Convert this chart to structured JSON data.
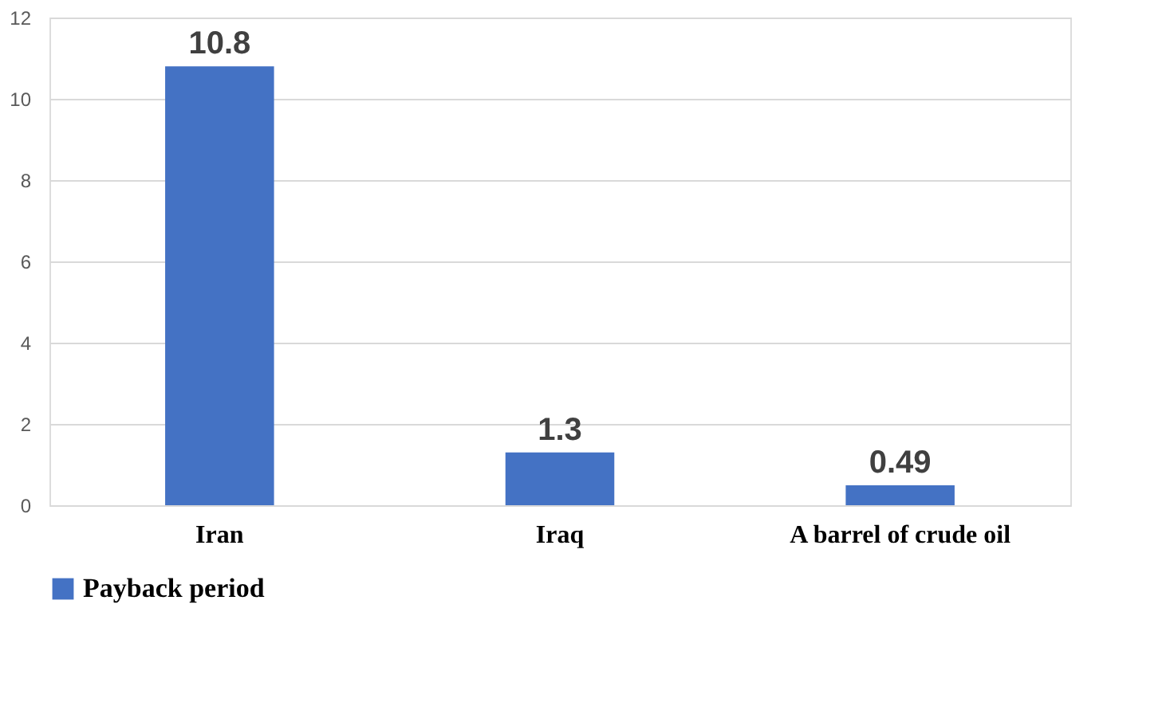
{
  "chart_data": {
    "type": "bar",
    "categories": [
      "Iran",
      "Iraq",
      "A barrel of crude oil"
    ],
    "series": [
      {
        "name": "Payback period",
        "color": "#4472c4",
        "values": [
          10.8,
          1.3,
          0.49
        ]
      }
    ],
    "ylim": [
      0,
      12
    ],
    "yticks": [
      0,
      2,
      4,
      6,
      8,
      10,
      12
    ],
    "grid": "y",
    "legend": "bottom",
    "data_labels": true
  }
}
